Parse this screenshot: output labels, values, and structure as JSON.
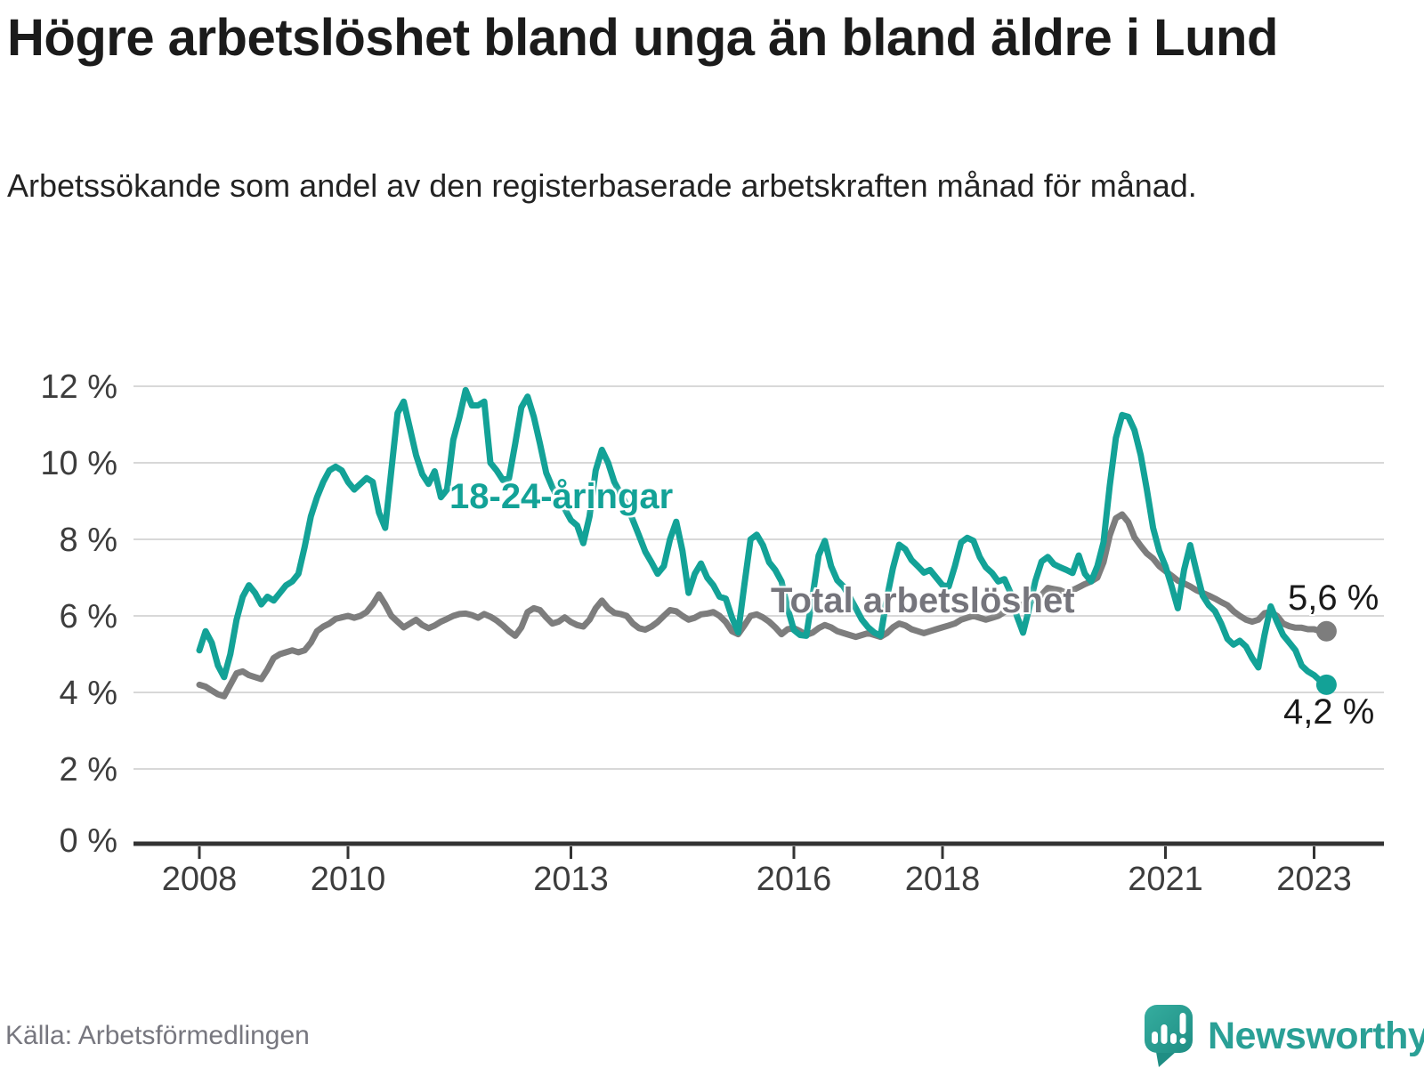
{
  "header": {
    "title": "Högre arbetslöshet bland unga än bland äldre i Lund",
    "subtitle": "Arbetssökande som andel av den registerbaserade arbetskraften månad för månad."
  },
  "footer": {
    "source": "Källa: Arbetsförmedlingen",
    "logo_text": "Newsworthy",
    "logo_icon": "speech-bubble-bar-chart-icon"
  },
  "colors": {
    "young_series": "#13a297",
    "total_series": "#7d7d7d",
    "total_label": "#75757c",
    "gridline": "#d8d8d8",
    "axis": "#333333",
    "tick_text": "#3d3d3d",
    "brand_teal": "#2aa096"
  },
  "chart_data": {
    "type": "line",
    "title": "Högre arbetslöshet bland unga än bland äldre i Lund",
    "xlabel": "",
    "ylabel": "",
    "ylim": [
      0,
      12
    ],
    "grid": "horizontal",
    "legend_position": "inline-labels",
    "x_start": "2008-01",
    "x_end": "2023-03",
    "x_step": "1 month",
    "x_ticks": [
      {
        "label": "2008",
        "year": 2008
      },
      {
        "label": "2010",
        "year": 2010
      },
      {
        "label": "2013",
        "year": 2013
      },
      {
        "label": "2016",
        "year": 2016
      },
      {
        "label": "2018",
        "year": 2018
      },
      {
        "label": "2021",
        "year": 2021
      },
      {
        "label": "2023",
        "year": 2023
      }
    ],
    "y_ticks": [
      {
        "label": "12 %",
        "value": 12
      },
      {
        "label": "10 %",
        "value": 10
      },
      {
        "label": "8 %",
        "value": 8
      },
      {
        "label": "6 %",
        "value": 6
      },
      {
        "label": "4 %",
        "value": 4
      },
      {
        "label": "2 %",
        "value": 2
      },
      {
        "label": "0 %",
        "value": 0
      }
    ],
    "series": [
      {
        "name": "Total arbetslöshet",
        "color": "#7d7d7d",
        "end_label": "5,6 %",
        "end_value": 5.6,
        "values": [
          4.2,
          4.15,
          4.05,
          3.95,
          3.9,
          4.2,
          4.5,
          4.55,
          4.45,
          4.4,
          4.35,
          4.6,
          4.9,
          5.0,
          5.05,
          5.1,
          5.05,
          5.1,
          5.3,
          5.6,
          5.72,
          5.8,
          5.92,
          5.96,
          6.0,
          5.95,
          6.0,
          6.1,
          6.3,
          6.56,
          6.3,
          6.0,
          5.85,
          5.7,
          5.8,
          5.9,
          5.76,
          5.68,
          5.75,
          5.85,
          5.92,
          6.0,
          6.05,
          6.06,
          6.02,
          5.95,
          6.05,
          5.98,
          5.88,
          5.75,
          5.6,
          5.48,
          5.7,
          6.1,
          6.2,
          6.15,
          5.96,
          5.8,
          5.85,
          5.96,
          5.84,
          5.76,
          5.72,
          5.9,
          6.2,
          6.4,
          6.2,
          6.08,
          6.05,
          6.0,
          5.8,
          5.68,
          5.64,
          5.72,
          5.84,
          6.0,
          6.15,
          6.12,
          6.0,
          5.9,
          5.95,
          6.04,
          6.06,
          6.1,
          6.0,
          5.84,
          5.6,
          5.52,
          5.75,
          6.0,
          6.04,
          5.96,
          5.85,
          5.7,
          5.52,
          5.65,
          5.68,
          5.6,
          5.5,
          5.56,
          5.68,
          5.76,
          5.7,
          5.6,
          5.55,
          5.5,
          5.45,
          5.5,
          5.55,
          5.5,
          5.45,
          5.55,
          5.7,
          5.8,
          5.75,
          5.65,
          5.6,
          5.55,
          5.6,
          5.65,
          5.7,
          5.75,
          5.8,
          5.9,
          5.95,
          6.0,
          5.95,
          5.9,
          5.95,
          6.0,
          6.1,
          6.2,
          6.25,
          6.3,
          6.35,
          6.45,
          6.55,
          6.73,
          6.7,
          6.67,
          6.6,
          6.67,
          6.75,
          6.83,
          6.9,
          7.0,
          7.4,
          8.1,
          8.55,
          8.65,
          8.45,
          8.05,
          7.83,
          7.63,
          7.5,
          7.3,
          7.17,
          7.05,
          6.92,
          6.85,
          6.77,
          6.67,
          6.6,
          6.53,
          6.45,
          6.36,
          6.28,
          6.12,
          6.0,
          5.9,
          5.85,
          5.9,
          6.07,
          6.1,
          6.0,
          5.8,
          5.73,
          5.69,
          5.69,
          5.65,
          5.65,
          5.6,
          5.6
        ]
      },
      {
        "name": "18-24-åringar",
        "color": "#13a297",
        "end_label": "4,2 %",
        "end_value": 4.2,
        "values": [
          5.1,
          5.6,
          5.3,
          4.7,
          4.4,
          5.0,
          5.9,
          6.5,
          6.8,
          6.6,
          6.3,
          6.5,
          6.4,
          6.6,
          6.8,
          6.9,
          7.1,
          7.8,
          8.6,
          9.1,
          9.5,
          9.8,
          9.9,
          9.8,
          9.5,
          9.3,
          9.45,
          9.6,
          9.5,
          8.7,
          8.3,
          9.8,
          11.3,
          11.6,
          10.9,
          10.2,
          9.7,
          9.45,
          9.78,
          9.1,
          9.3,
          10.6,
          11.2,
          11.9,
          11.5,
          11.5,
          11.6,
          10.0,
          9.8,
          9.55,
          9.6,
          10.5,
          11.45,
          11.73,
          11.2,
          10.5,
          9.74,
          9.36,
          9.05,
          8.8,
          8.5,
          8.36,
          7.9,
          8.6,
          9.8,
          10.34,
          10.0,
          9.5,
          9.2,
          8.9,
          8.5,
          8.1,
          7.68,
          7.4,
          7.1,
          7.3,
          8.0,
          8.46,
          7.7,
          6.6,
          7.1,
          7.37,
          7.0,
          6.8,
          6.5,
          6.45,
          5.96,
          5.57,
          6.8,
          8.0,
          8.12,
          7.85,
          7.4,
          7.2,
          6.9,
          6.2,
          5.63,
          5.5,
          5.48,
          6.5,
          7.58,
          7.96,
          7.3,
          6.93,
          6.77,
          6.5,
          6.2,
          5.9,
          5.7,
          5.56,
          5.48,
          6.45,
          7.25,
          7.86,
          7.74,
          7.46,
          7.3,
          7.13,
          7.2,
          7.0,
          6.8,
          6.77,
          7.3,
          7.92,
          8.04,
          7.96,
          7.54,
          7.27,
          7.12,
          6.9,
          6.96,
          6.6,
          6.0,
          5.56,
          6.2,
          6.92,
          7.42,
          7.54,
          7.35,
          7.27,
          7.2,
          7.12,
          7.58,
          7.1,
          6.9,
          7.3,
          7.92,
          9.4,
          10.65,
          11.25,
          11.2,
          10.85,
          10.2,
          9.3,
          8.3,
          7.7,
          7.3,
          6.77,
          6.2,
          7.2,
          7.85,
          7.17,
          6.53,
          6.28,
          6.12,
          5.8,
          5.4,
          5.25,
          5.35,
          5.2,
          4.9,
          4.65,
          5.5,
          6.25,
          5.85,
          5.5,
          5.3,
          5.1,
          4.7,
          4.55,
          4.45,
          4.3,
          4.2
        ]
      }
    ]
  }
}
